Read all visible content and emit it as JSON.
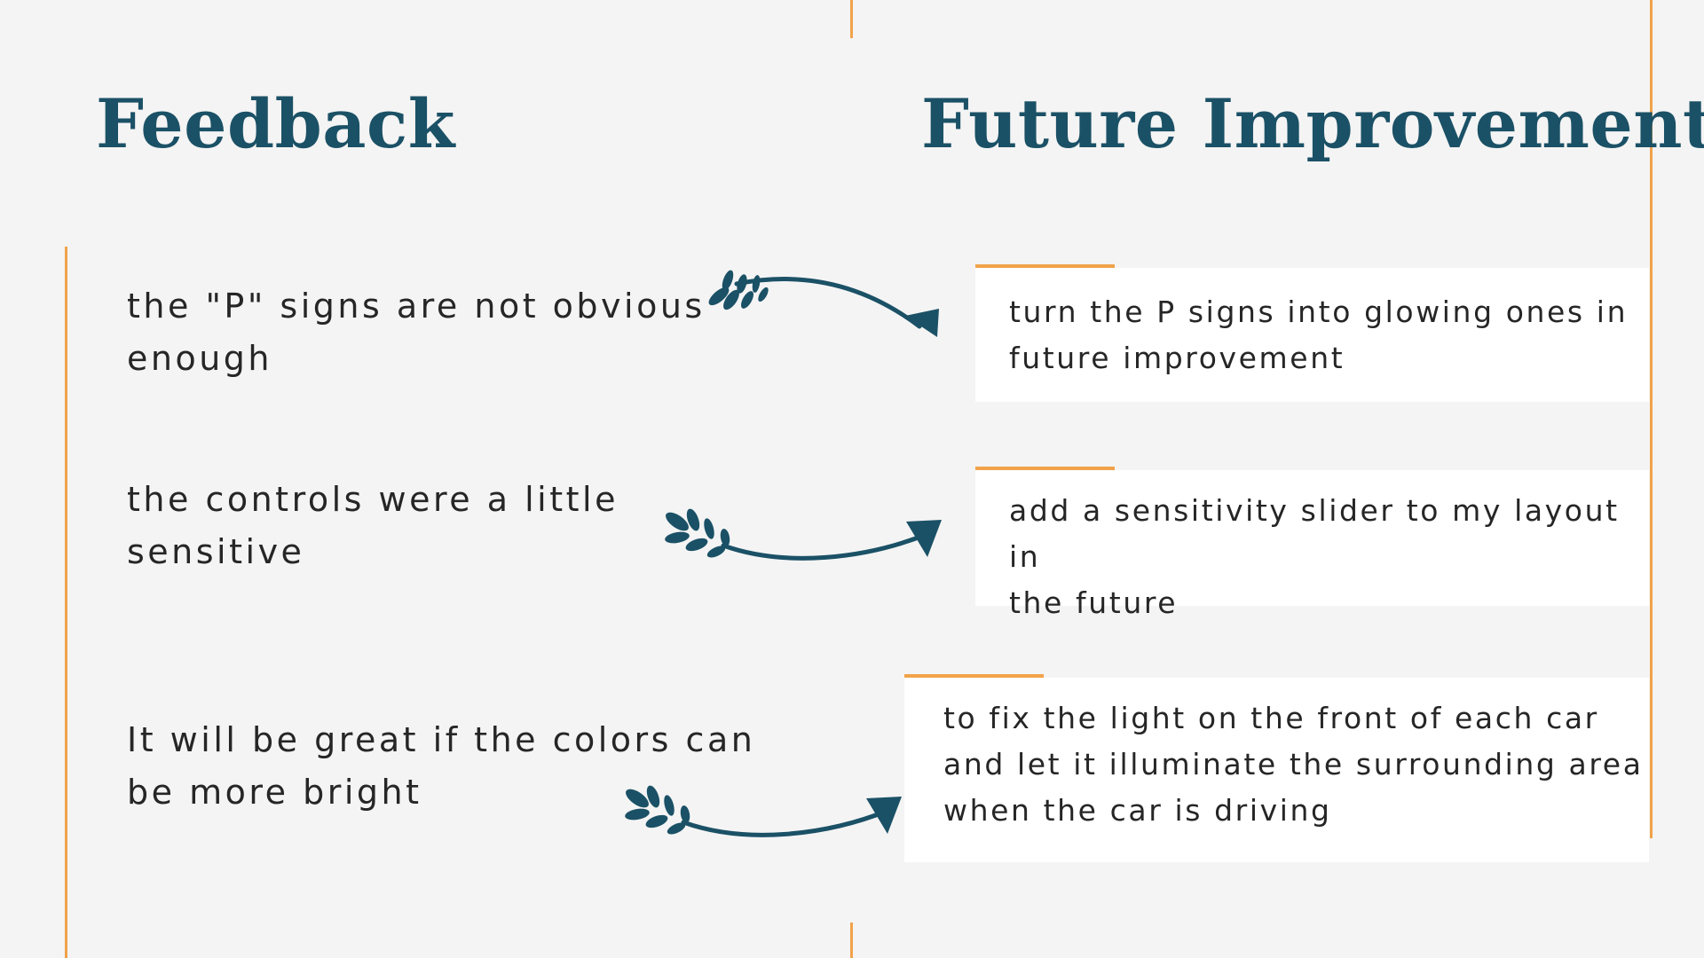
{
  "colors": {
    "background": "#f4f4f4",
    "heading": "#1b5166",
    "accent": "#f1a24a",
    "arrow": "#1b5166",
    "card": "#ffffff",
    "text": "#262626"
  },
  "headings": {
    "feedback": "Feedback",
    "future_improvement": "Future Improvement"
  },
  "rows": [
    {
      "feedback": [
        "the \"P\" signs are not obvious",
        "enough"
      ],
      "improvement": [
        "turn the P signs into glowing ones in",
        "future improvement"
      ],
      "arrow_icon": "leafy-arrow-icon"
    },
    {
      "feedback": [
        "the controls were a little",
        "sensitive"
      ],
      "improvement": [
        "add a sensitivity slider to my layout in",
        "the future"
      ],
      "arrow_icon": "leafy-arrow-icon"
    },
    {
      "feedback": [
        "It will be great if the colors can",
        "be more bright"
      ],
      "improvement": [
        "to fix the light on the front of each car",
        "and let it illuminate the surrounding area",
        "when the car is driving"
      ],
      "arrow_icon": "leafy-arrow-icon"
    }
  ]
}
